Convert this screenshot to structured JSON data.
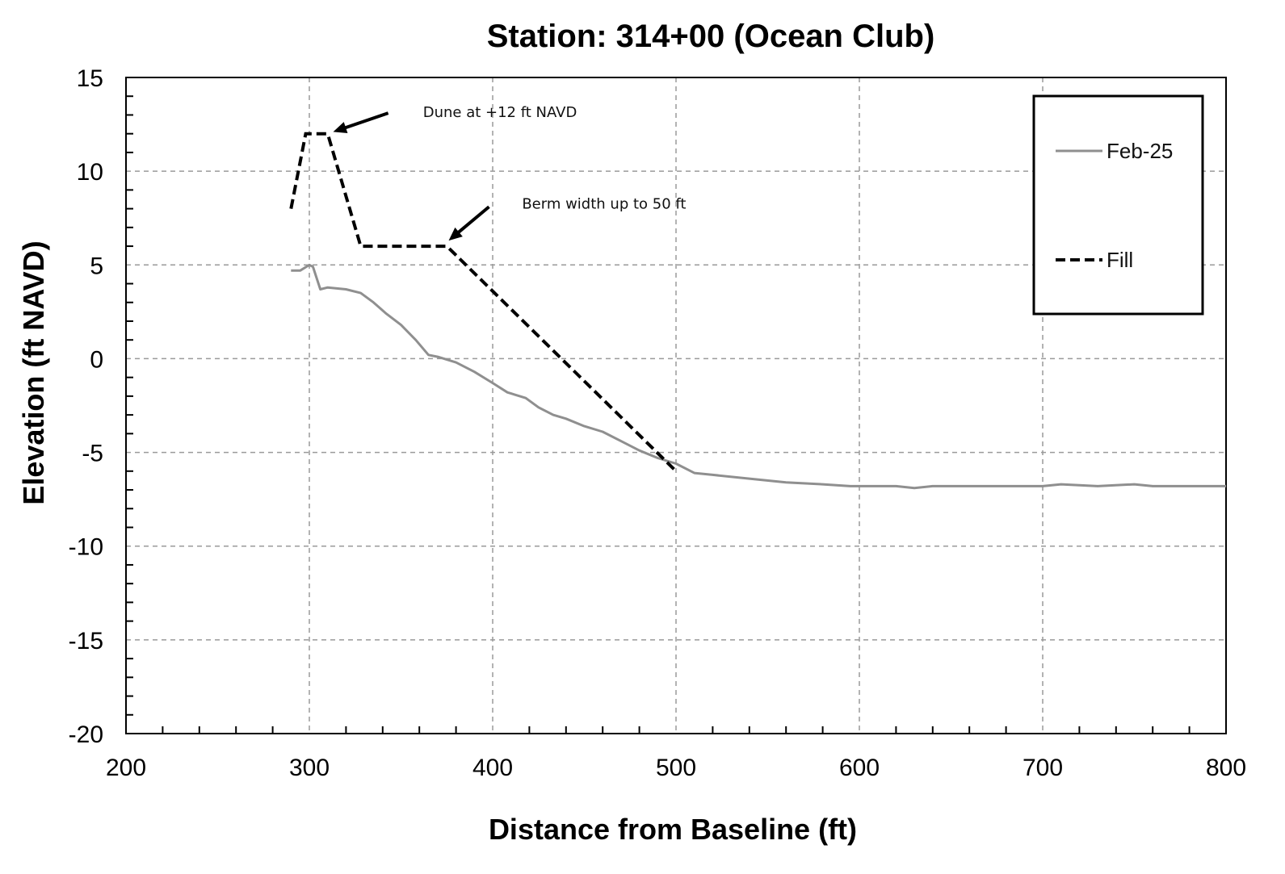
{
  "chart_data": {
    "type": "line",
    "title": "Station:  314+00  (Ocean Club)",
    "xlabel": "Distance from Baseline (ft)",
    "ylabel": "Elevation (ft NAVD)",
    "xlim": [
      200,
      800
    ],
    "ylim": [
      -20,
      15
    ],
    "x_ticks": [
      200,
      300,
      400,
      500,
      600,
      700,
      800
    ],
    "x_tick_labels": [
      "200",
      "300",
      "400",
      "500",
      "600",
      "700",
      "800"
    ],
    "y_ticks": [
      -20,
      -15,
      -10,
      -5,
      0,
      5,
      10,
      15
    ],
    "y_tick_labels": [
      "-20",
      "-15",
      "-10",
      "-5",
      "0",
      "5",
      "10",
      "15"
    ],
    "x_minor_step": 20,
    "y_minor_step": 1,
    "grid": true,
    "legend_position": "top-right",
    "series": [
      {
        "name": "Feb-25",
        "color": "#8f8f8f",
        "style": "solid",
        "x": [
          290,
          295,
          300,
          302,
          306,
          310,
          320,
          328,
          335,
          342,
          350,
          358,
          365,
          370,
          380,
          390,
          400,
          408,
          418,
          425,
          433,
          440,
          450,
          460,
          470,
          480,
          490,
          500,
          510,
          520,
          540,
          560,
          580,
          595,
          610,
          620,
          630,
          640,
          660,
          680,
          700,
          710,
          730,
          750,
          760,
          780,
          800
        ],
        "y": [
          4.7,
          4.7,
          5.0,
          4.9,
          3.7,
          3.8,
          3.7,
          3.5,
          3.0,
          2.4,
          1.8,
          1.0,
          0.2,
          0.1,
          -0.2,
          -0.7,
          -1.3,
          -1.8,
          -2.1,
          -2.6,
          -3.0,
          -3.2,
          -3.6,
          -3.9,
          -4.4,
          -4.9,
          -5.3,
          -5.6,
          -6.1,
          -6.2,
          -6.4,
          -6.6,
          -6.7,
          -6.8,
          -6.8,
          -6.8,
          -6.9,
          -6.8,
          -6.8,
          -6.8,
          -6.8,
          -6.7,
          -6.8,
          -6.7,
          -6.8,
          -6.8,
          -6.8
        ]
      },
      {
        "name": "Fill",
        "color": "#000000",
        "style": "dashed",
        "x": [
          290,
          298,
          310,
          328,
          375,
          500
        ],
        "y": [
          8,
          12,
          12,
          6,
          6,
          -6
        ]
      }
    ],
    "annotations": [
      {
        "text": "Dune at +12 ft NAVD",
        "x": 362,
        "y": 12.9,
        "arrow_from": [
          343,
          13.1
        ],
        "arrow_to": [
          313,
          12.1
        ]
      },
      {
        "text": "Berm width up to 50 ft",
        "x": 416,
        "y": 8.0,
        "arrow_from": [
          398,
          8.1
        ],
        "arrow_to": [
          376,
          6.3
        ]
      }
    ]
  }
}
